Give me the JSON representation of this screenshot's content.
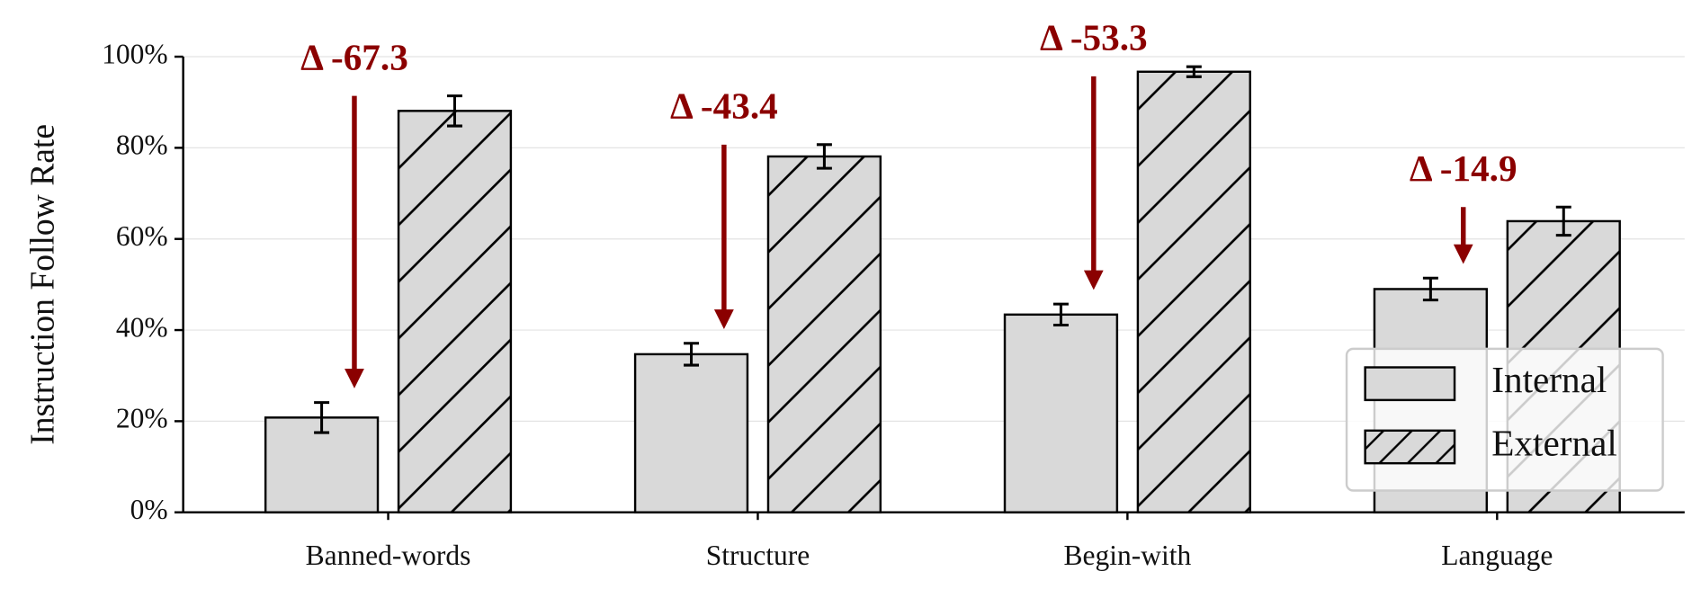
{
  "chart_data": {
    "type": "bar",
    "y_label": "Instruction Follow Rate",
    "categories": [
      "Banned-words",
      "Structure",
      "Begin-with",
      "Language"
    ],
    "series": [
      {
        "name": "Internal",
        "color": "#d9d9d9",
        "hatch": false,
        "values": [
          20.8,
          34.7,
          43.4,
          49.0
        ],
        "errors": [
          3.3,
          2.4,
          2.3,
          2.4
        ]
      },
      {
        "name": "External",
        "color": "#d9d9d9",
        "hatch": true,
        "values": [
          88.1,
          78.1,
          96.7,
          63.9
        ],
        "errors": [
          3.3,
          2.6,
          1.1,
          3.1
        ]
      }
    ],
    "annotations": [
      "Δ -67.3",
      "Δ -43.4",
      "Δ -53.3",
      "Δ -14.9"
    ],
    "annotation_color": "#8b0000",
    "ylim": [
      0,
      100
    ],
    "yticks": [
      {
        "value": 0,
        "label": "0%"
      },
      {
        "value": 20,
        "label": "20%"
      },
      {
        "value": 40,
        "label": "40%"
      },
      {
        "value": 60,
        "label": "60%"
      },
      {
        "value": 80,
        "label": "80%"
      },
      {
        "value": 100,
        "label": "100%"
      }
    ],
    "grid": true,
    "legend": "lower right"
  }
}
